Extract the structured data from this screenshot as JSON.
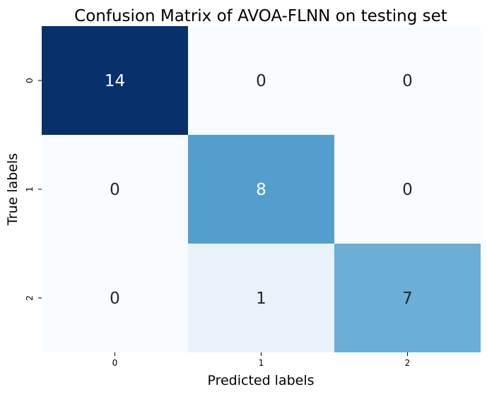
{
  "chart_data": {
    "type": "heatmap",
    "title": "Confusion Matrix of AVOA-FLNN on testing set",
    "xlabel": "Predicted labels",
    "ylabel": "True labels",
    "x_categories": [
      "0",
      "1",
      "2"
    ],
    "y_categories": [
      "0",
      "1",
      "2"
    ],
    "values": [
      [
        14,
        0,
        0
      ],
      [
        0,
        8,
        0
      ],
      [
        0,
        1,
        7
      ]
    ],
    "color_range": [
      0,
      14
    ],
    "colormap": "Blues",
    "colorbar": false,
    "grid": false
  }
}
